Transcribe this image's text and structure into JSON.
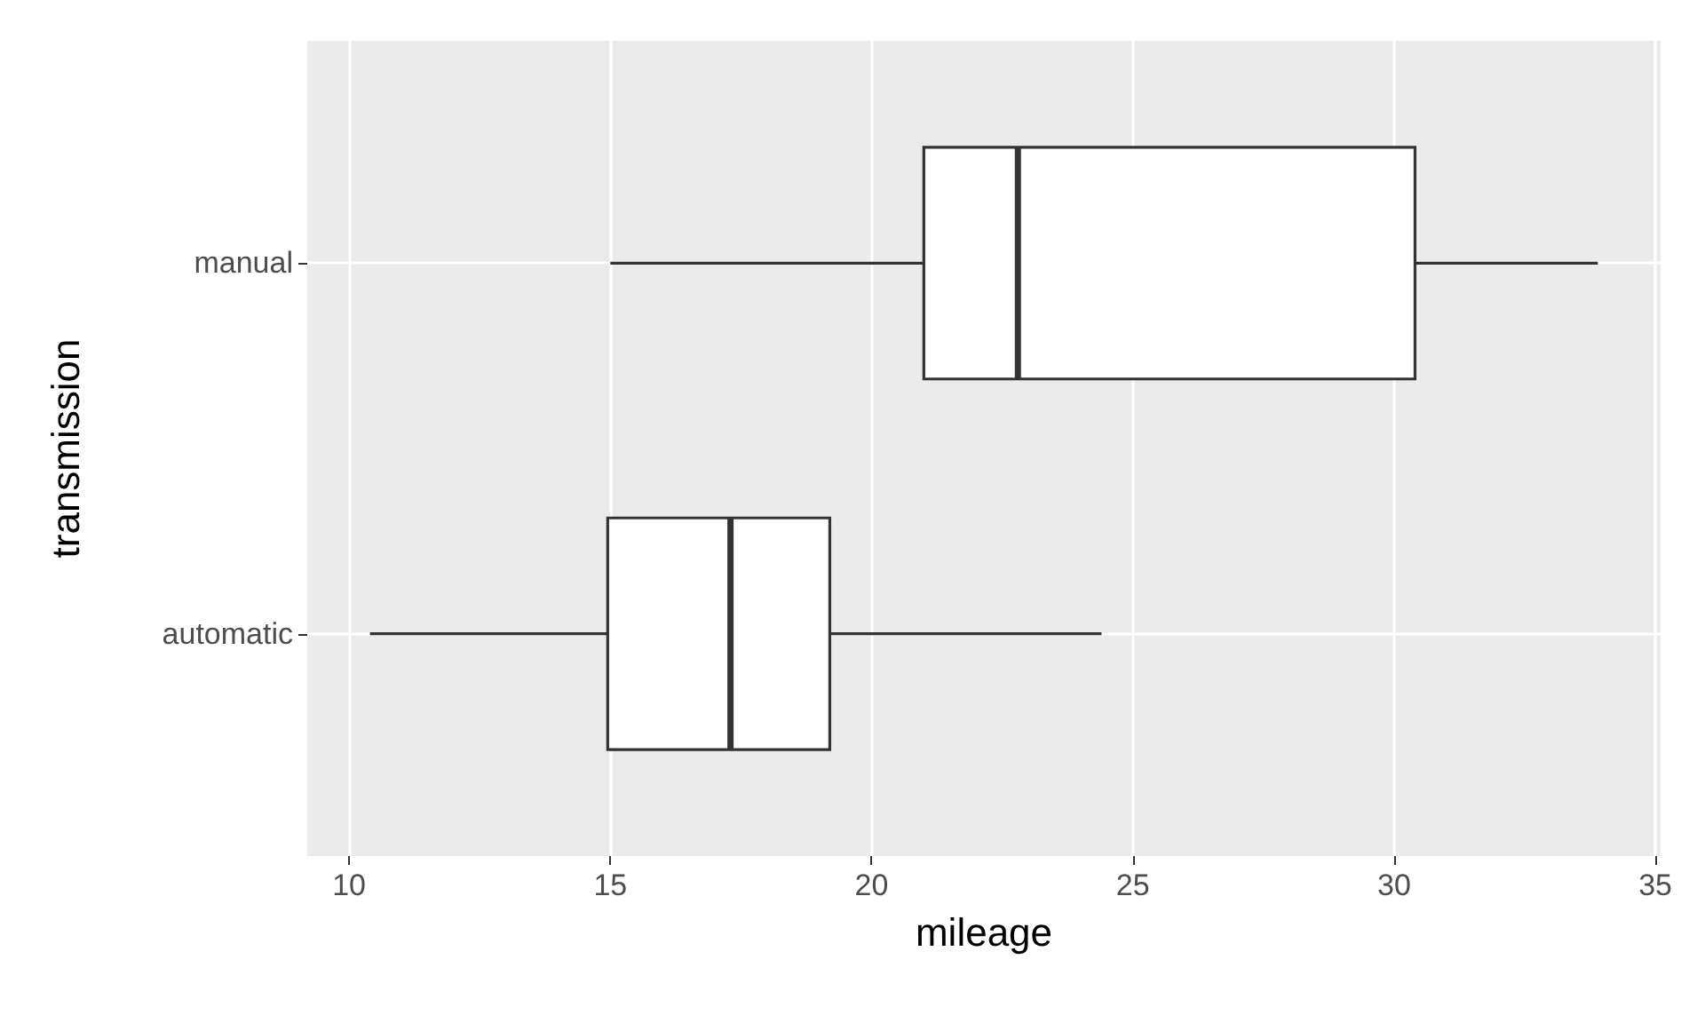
{
  "chart_data": {
    "type": "box",
    "orientation": "horizontal",
    "xlabel": "mileage",
    "ylabel": "transmission",
    "categories": [
      "manual",
      "automatic"
    ],
    "boxes": [
      {
        "low": 15,
        "q1": 21,
        "median": 22.8,
        "q3": 30.4,
        "high": 33.9
      },
      {
        "low": 10.4,
        "q1": 14.95,
        "median": 17.3,
        "q3": 19.2,
        "high": 24.4
      }
    ],
    "xlim": [
      9.2,
      35.1
    ],
    "xticks": [
      10,
      15,
      20,
      25,
      30,
      35
    ],
    "grid": true
  }
}
